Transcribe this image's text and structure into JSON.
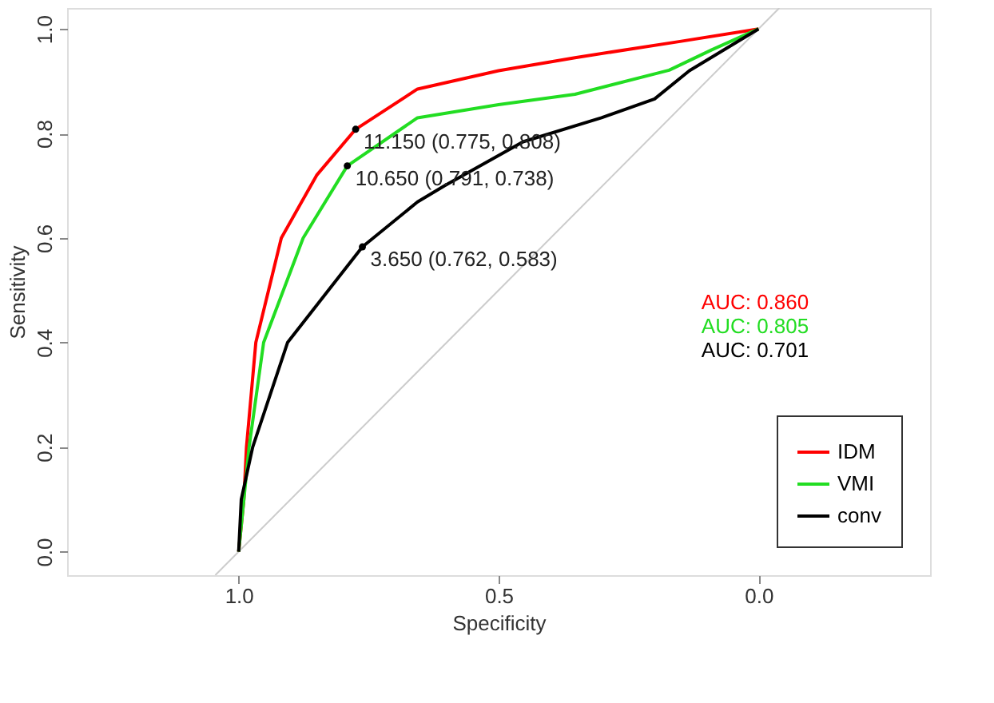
{
  "chart_data": {
    "type": "line",
    "xlabel": "Specificity",
    "ylabel": "Sensitivity",
    "xlim": [
      1.33,
      -0.33
    ],
    "ylim": [
      -0.045,
      1.04
    ],
    "xticks": [
      {
        "value": 1.0,
        "label": "1.0"
      },
      0.5,
      {
        "value": 0.0,
        "label": "0.0"
      }
    ],
    "yticks": [
      {
        "value": 0.0,
        "label": "0.0"
      },
      0.2,
      0.4,
      0.6,
      0.8,
      {
        "value": 1.0,
        "label": "1.0"
      }
    ],
    "grid": false,
    "legend": "bottom right",
    "line_style": "solid",
    "marker": "none",
    "series": [
      {
        "type": "line",
        "color": "#cccccc",
        "x": [
          1.045,
          -0.04
        ],
        "values": [
          -0.045,
          1.04
        ]
      },
      {
        "name": "IDM",
        "color": "#ff0000",
        "x": [
          1.0,
          0.99,
          0.985,
          0.967,
          0.918,
          0.85,
          0.775,
          0.656,
          0.5,
          0.353,
          0.151,
          0.0
        ],
        "values": [
          0.0,
          0.1,
          0.2,
          0.4,
          0.6,
          0.72,
          0.808,
          0.885,
          0.92,
          0.945,
          0.976,
          1.0
        ]
      },
      {
        "name": "VMI",
        "color": "#22dd22",
        "x": [
          1.0,
          0.98,
          0.952,
          0.876,
          0.791,
          0.656,
          0.5,
          0.353,
          0.172,
          0.09,
          0.0
        ],
        "values": [
          0.0,
          0.2,
          0.4,
          0.6,
          0.738,
          0.83,
          0.855,
          0.875,
          0.921,
          0.96,
          1.0
        ]
      },
      {
        "name": "conv",
        "color": "#000000",
        "x": [
          1.0,
          0.995,
          0.973,
          0.906,
          0.762,
          0.656,
          0.604,
          0.453,
          0.302,
          0.2,
          0.133,
          0.0
        ],
        "values": [
          0.0,
          0.1,
          0.2,
          0.4,
          0.583,
          0.669,
          0.7,
          0.784,
          0.83,
          0.866,
          0.92,
          1.0
        ]
      },
      {
        "type": "scatter",
        "marker": "circle",
        "color": "#000000",
        "x": [
          0.775,
          0.791,
          0.762
        ],
        "values": [
          0.808,
          0.738,
          0.583
        ]
      }
    ],
    "annotations": [
      {
        "text": "11.150 (0.775, 0.808)",
        "x": 0.775,
        "y": 0.808
      },
      {
        "text": "10.650 (0.791, 0.738)",
        "x": 0.791,
        "y": 0.738
      },
      {
        "text": "3.650 (0.762, 0.583)",
        "x": 0.762,
        "y": 0.583
      },
      "AUC: 0.860",
      "AUC: 0.805",
      "AUC: 0.701"
    ]
  }
}
